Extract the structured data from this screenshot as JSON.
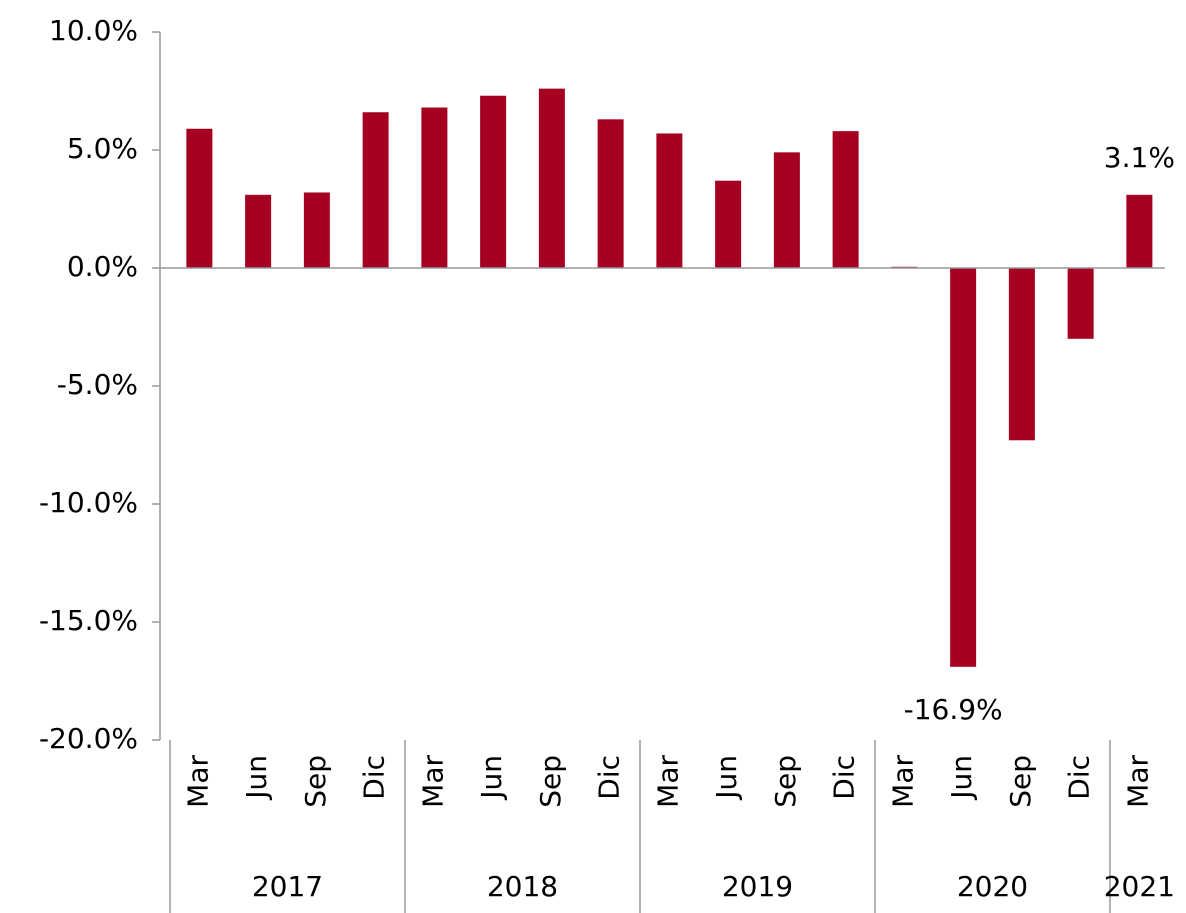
{
  "chart_data": {
    "type": "bar",
    "categories": [
      "Mar",
      "Jun",
      "Sep",
      "Dic",
      "Mar",
      "Jun",
      "Sep",
      "Dic",
      "Mar",
      "Jun",
      "Sep",
      "Dic",
      "Mar",
      "Jun",
      "Sep",
      "Dic",
      "Mar"
    ],
    "groups": [
      {
        "label": "2017",
        "size": 4
      },
      {
        "label": "2018",
        "size": 4
      },
      {
        "label": "2019",
        "size": 4
      },
      {
        "label": "2020",
        "size": 4
      },
      {
        "label": "2021",
        "size": 1
      }
    ],
    "values": [
      5.9,
      3.1,
      3.2,
      6.6,
      6.8,
      7.3,
      7.6,
      6.3,
      5.7,
      3.7,
      4.9,
      5.8,
      0.05,
      -16.9,
      -7.3,
      -3.0,
      3.1
    ],
    "value_labels": [
      null,
      null,
      null,
      null,
      null,
      null,
      null,
      null,
      null,
      null,
      null,
      null,
      null,
      "-16.9%",
      null,
      null,
      "3.1%"
    ],
    "color": "#a50021",
    "ylim": [
      -20,
      10
    ],
    "yticks": [
      {
        "value": -20,
        "label": "-20.0%"
      },
      {
        "value": -15,
        "label": "-15.0%"
      },
      {
        "value": -10,
        "label": "-10.0%"
      },
      {
        "value": -5,
        "label": "-5.0%"
      },
      {
        "value": 0,
        "label": "0.0%"
      },
      {
        "value": 5,
        "label": "5.0%"
      },
      {
        "value": 10,
        "label": "10.0%"
      }
    ],
    "grid": false
  }
}
